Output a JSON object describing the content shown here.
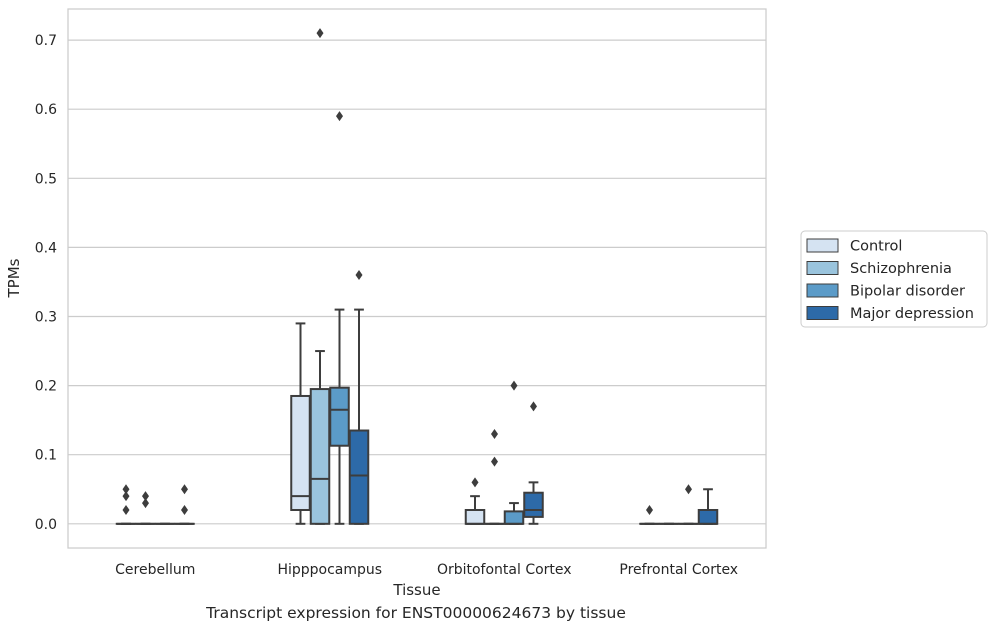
{
  "caption": "Transcript expression for ENST00000624673 by tissue",
  "colors": {
    "background": "#ffffff",
    "grid": "#cccccc",
    "frame": "#cccccc",
    "box_edge": "#3d3d3d",
    "text": "#262626"
  },
  "chart_data": {
    "type": "box",
    "xlabel": "Tissue",
    "ylabel": "TPMs",
    "ylim": [
      -0.035,
      0.745
    ],
    "yticks": [
      0.0,
      0.1,
      0.2,
      0.3,
      0.4,
      0.5,
      0.6,
      0.7
    ],
    "ytick_labels": [
      "0.0",
      "0.1",
      "0.2",
      "0.3",
      "0.4",
      "0.5",
      "0.6",
      "0.7"
    ],
    "grid": true,
    "legend_position": "right",
    "categories": [
      "Cerebellum",
      "Hipppocampus",
      "Orbitofontal Cortex",
      "Prefrontal Cortex"
    ],
    "series": [
      {
        "name": "Control",
        "color": "#d5e3f2",
        "boxes": [
          {
            "whislo": 0,
            "q1": 0,
            "med": 0,
            "q3": 0,
            "whishi": 0,
            "fliers": [
              0.02,
              0.04,
              0.05
            ]
          },
          {
            "whislo": 0,
            "q1": 0.02,
            "med": 0.04,
            "q3": 0.185,
            "whishi": 0.29,
            "fliers": []
          },
          {
            "whislo": 0,
            "q1": 0,
            "med": 0,
            "q3": 0.02,
            "whishi": 0.04,
            "fliers": [
              0.06
            ]
          },
          {
            "whislo": 0,
            "q1": 0,
            "med": 0,
            "q3": 0,
            "whishi": 0,
            "fliers": [
              0.02
            ]
          }
        ]
      },
      {
        "name": "Schizophrenia",
        "color": "#9ac4dd",
        "boxes": [
          {
            "whislo": 0,
            "q1": 0,
            "med": 0,
            "q3": 0,
            "whishi": 0,
            "fliers": [
              0.03,
              0.04
            ]
          },
          {
            "whislo": 0,
            "q1": 0,
            "med": 0.065,
            "q3": 0.195,
            "whishi": 0.25,
            "fliers": [
              0.71
            ]
          },
          {
            "whislo": 0,
            "q1": 0,
            "med": 0,
            "q3": 0,
            "whishi": 0,
            "fliers": [
              0.09,
              0.13
            ]
          },
          {
            "whislo": 0,
            "q1": 0,
            "med": 0,
            "q3": 0,
            "whishi": 0,
            "fliers": []
          }
        ]
      },
      {
        "name": "Bipolar disorder",
        "color": "#5b9bc8",
        "boxes": [
          {
            "whislo": 0,
            "q1": 0,
            "med": 0,
            "q3": 0,
            "whishi": 0,
            "fliers": []
          },
          {
            "whislo": 0,
            "q1": 0.113,
            "med": 0.165,
            "q3": 0.197,
            "whishi": 0.31,
            "fliers": [
              0.59
            ]
          },
          {
            "whislo": 0,
            "q1": 0,
            "med": 0,
            "q3": 0.018,
            "whishi": 0.03,
            "fliers": [
              0.2
            ]
          },
          {
            "whislo": 0,
            "q1": 0,
            "med": 0,
            "q3": 0,
            "whishi": 0,
            "fliers": [
              0.05
            ]
          }
        ]
      },
      {
        "name": "Major depression",
        "color": "#2d6aa8",
        "boxes": [
          {
            "whislo": 0,
            "q1": 0,
            "med": 0,
            "q3": 0,
            "whishi": 0,
            "fliers": [
              0.02,
              0.05
            ]
          },
          {
            "whislo": 0,
            "q1": 0,
            "med": 0.07,
            "q3": 0.135,
            "whishi": 0.31,
            "fliers": [
              0.36
            ]
          },
          {
            "whislo": 0,
            "q1": 0.01,
            "med": 0.02,
            "q3": 0.045,
            "whishi": 0.06,
            "fliers": [
              0.17
            ]
          },
          {
            "whislo": 0,
            "q1": 0,
            "med": 0,
            "q3": 0.02,
            "whishi": 0.05,
            "fliers": []
          }
        ]
      }
    ]
  }
}
